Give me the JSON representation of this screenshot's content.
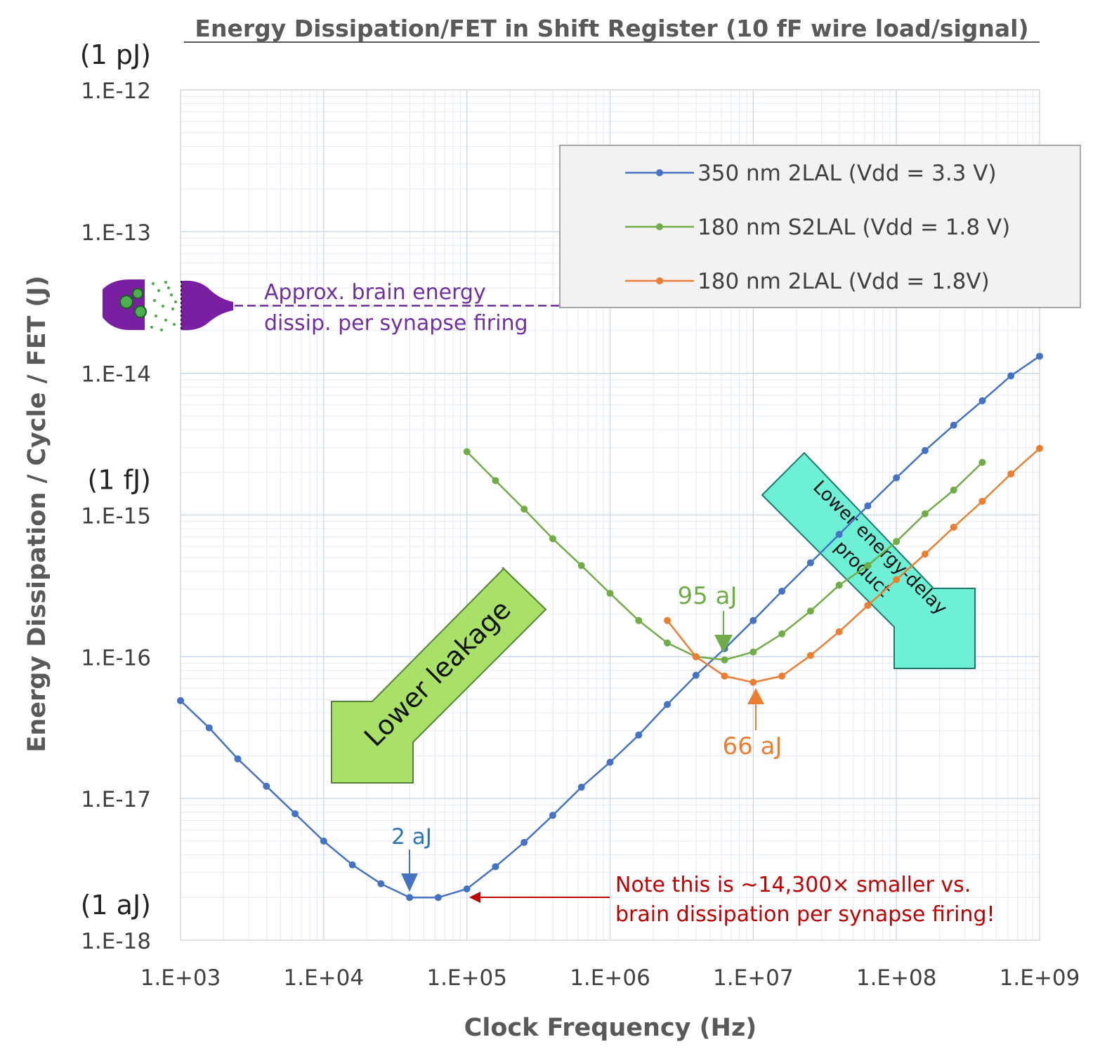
{
  "chart_data": {
    "type": "line",
    "title": "Energy Dissipation/FET in Shift Register (10 fF wire load/signal)",
    "xlabel": "Clock Frequency (Hz)",
    "ylabel": "Energy Dissipation / Cycle / FET (J)",
    "xscale": "log",
    "yscale": "log",
    "xlim": [
      1000,
      1000000000
    ],
    "ylim": [
      1e-18,
      1e-12
    ],
    "grid": true,
    "x_ticks": [
      "1.E+03",
      "1.E+04",
      "1.E+05",
      "1.E+06",
      "1.E+07",
      "1.E+08",
      "1.E+09"
    ],
    "y_ticks": [
      "1.E-18",
      "1.E-17",
      "1.E-16",
      "1.E-15",
      "1.E-14",
      "1.E-13",
      "1.E-12"
    ],
    "unit_labels": [
      {
        "text": "(1 pJ)",
        "y": 1e-12
      },
      {
        "text": "(1 fJ)",
        "y": 1e-15
      },
      {
        "text": "(1 aJ)",
        "y": 1e-18
      }
    ],
    "legend_position": "top-right",
    "series": [
      {
        "name": "350 nm 2LAL (Vdd = 3.3 V)",
        "color": "#4472c4",
        "x": [
          1000,
          1585,
          2512,
          3981,
          6310,
          10000,
          15850,
          25120,
          39810,
          63100,
          100000,
          158500,
          251200,
          398100,
          631000,
          1000000,
          1585000,
          2512000,
          3981000,
          6310000,
          10000000,
          15850000,
          25120000,
          39810000,
          63100000,
          100000000,
          158500000,
          251200000,
          398100000,
          631000000,
          1000000000
        ],
        "y": [
          4.9e-17,
          3.15e-17,
          1.9e-17,
          1.22e-17,
          7.8e-18,
          5e-18,
          3.4e-18,
          2.5e-18,
          2e-18,
          2e-18,
          2.3e-18,
          3.3e-18,
          4.9e-18,
          7.6e-18,
          1.2e-17,
          1.8e-17,
          2.8e-17,
          4.6e-17,
          7.4e-17,
          1.14e-16,
          1.8e-16,
          2.9e-16,
          4.6e-16,
          7.3e-16,
          1.16e-15,
          1.83e-15,
          2.85e-15,
          4.3e-15,
          6.4e-15,
          9.6e-15,
          1.32e-14
        ]
      },
      {
        "name": "180 nm S2LAL (Vdd = 1.8 V)",
        "color": "#70ad47",
        "x": [
          100000,
          158500,
          251200,
          398100,
          631000,
          1000000,
          1585000,
          2512000,
          3981000,
          6310000,
          10000000,
          15850000,
          25120000,
          39810000,
          63100000,
          100000000,
          158500000,
          251200000,
          398100000
        ],
        "y": [
          2.8e-15,
          1.75e-15,
          1.1e-15,
          6.8e-16,
          4.4e-16,
          2.8e-16,
          1.8e-16,
          1.25e-16,
          1e-16,
          9.5e-17,
          1.08e-16,
          1.45e-16,
          2.1e-16,
          3.2e-16,
          4.4e-16,
          6.5e-16,
          1.02e-15,
          1.5e-15,
          2.35e-15
        ]
      },
      {
        "name": "180 nm 2LAL (Vdd = 1.8V)",
        "color": "#ed7d31",
        "x": [
          2512000,
          3981000,
          6310000,
          10000000,
          15850000,
          25120000,
          39810000,
          63100000,
          100000000,
          158500000,
          251200000,
          398100000,
          631000000,
          1000000000
        ],
        "y": [
          1.8e-16,
          1e-16,
          7.3e-17,
          6.6e-17,
          7.3e-17,
          1.02e-16,
          1.5e-16,
          2.3e-16,
          3.5e-16,
          5.3e-16,
          8.2e-16,
          1.25e-15,
          1.95e-15,
          2.95e-15
        ]
      }
    ],
    "annotations": {
      "min_350": {
        "text": "2 aJ",
        "color": "#2e75b6"
      },
      "min_s2lal": {
        "text": "95 aJ",
        "color": "#70ad47"
      },
      "min_2lal": {
        "text": "66 aJ",
        "color": "#ed7d31"
      },
      "brain_line1": "Approx. brain energy",
      "brain_line2": "dissip. per synapse firing",
      "brain_color": "#7030a0",
      "note_line1": "Note this is ~14,300× smaller vs.",
      "note_line2": "brain dissipation per synapse firing!",
      "note_color": "#c00000",
      "arrow_leakage": "Lower leakage",
      "arrow_edp_line1": "Lower energy-delay",
      "arrow_edp_line2": "product"
    },
    "brain_energy_level": 3e-14
  }
}
